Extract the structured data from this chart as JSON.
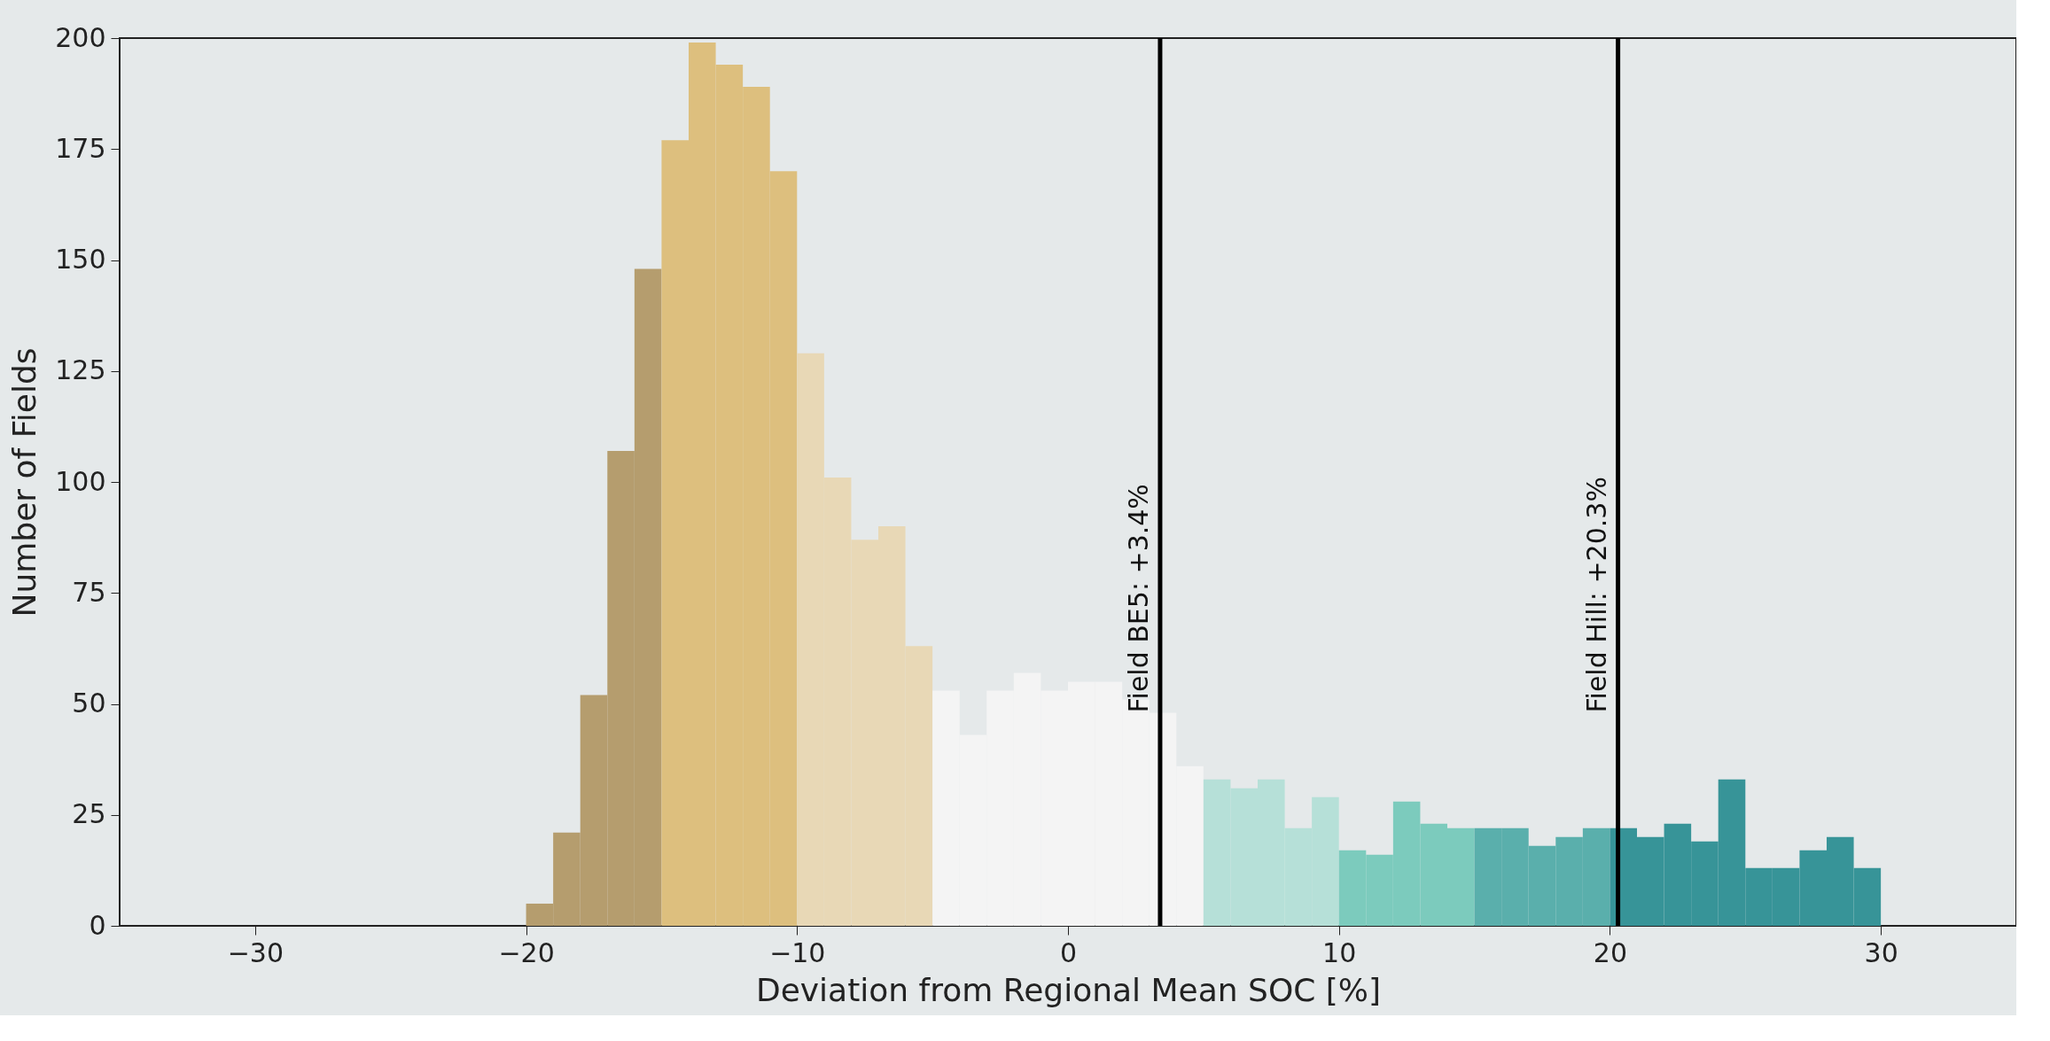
{
  "chart_data": {
    "type": "histogram",
    "xlabel": "Deviation from Regional Mean SOC [%]",
    "ylabel": "Number of Fields",
    "bins": [
      -20,
      -19,
      -18,
      -17,
      -16,
      -15,
      -14,
      -13,
      -12,
      -11,
      -10,
      -9,
      -8,
      -7,
      -6,
      -5,
      -4,
      -3,
      -2,
      -1,
      0,
      1,
      2,
      3,
      4,
      5,
      6,
      7,
      8,
      9,
      10,
      11,
      12,
      13,
      14,
      15,
      16,
      17,
      18,
      19,
      20,
      21,
      22,
      23,
      24,
      25,
      26,
      27,
      28,
      29,
      30
    ],
    "values": [
      5,
      21,
      52,
      107,
      148,
      177,
      199,
      194,
      189,
      170,
      129,
      101,
      87,
      90,
      63,
      53,
      43,
      53,
      57,
      53,
      55,
      55,
      51,
      48,
      36,
      33,
      31,
      33,
      22,
      29,
      17,
      16,
      28,
      23,
      22,
      22,
      22,
      18,
      20,
      22,
      22,
      20,
      23,
      19,
      33,
      13,
      13,
      17,
      20,
      13
    ],
    "colors": [
      "#b59d6e",
      "#b59d6e",
      "#b59d6e",
      "#b59d6e",
      "#b59d6e",
      "#ddbf7e",
      "#ddbf7e",
      "#ddbf7e",
      "#ddbf7e",
      "#ddbf7e",
      "#e8d8b6",
      "#e8d8b6",
      "#e8d8b6",
      "#e8d8b6",
      "#e8d8b6",
      "#f4f4f4",
      "#f4f4f4",
      "#f4f4f4",
      "#f4f4f4",
      "#f4f4f4",
      "#f4f4f4",
      "#f4f4f4",
      "#f4f4f4",
      "#f4f4f4",
      "#f4f4f4",
      "#b6e0d8",
      "#b6e0d8",
      "#b6e0d8",
      "#b6e0d8",
      "#b6e0d8",
      "#7ccbbd",
      "#7ccbbd",
      "#7ccbbd",
      "#7ccbbd",
      "#7ccbbd",
      "#5aafac",
      "#5aafac",
      "#5aafac",
      "#5aafac",
      "#5aafac",
      "#379498",
      "#379498",
      "#379498",
      "#379498",
      "#379498",
      "#379498",
      "#379498",
      "#379498",
      "#379498",
      "#379498"
    ],
    "xlim": [
      -35,
      35
    ],
    "ylim": [
      0,
      200
    ],
    "xticks": [
      {
        "value": -30,
        "label": "−30"
      },
      {
        "value": -20,
        "label": "−20"
      },
      {
        "value": -10,
        "label": "−10"
      },
      0,
      10,
      20,
      30
    ],
    "yticks": [
      0,
      25,
      50,
      75,
      100,
      125,
      150,
      175,
      200
    ],
    "ref_lines": [
      {
        "axis": "x",
        "value": 3.4,
        "label": "Field BE5: +3.4%",
        "color": "#000000"
      },
      {
        "axis": "x",
        "value": 20.3,
        "label": "Field Hill: +20.3%",
        "color": "#000000"
      }
    ],
    "grid": false
  }
}
